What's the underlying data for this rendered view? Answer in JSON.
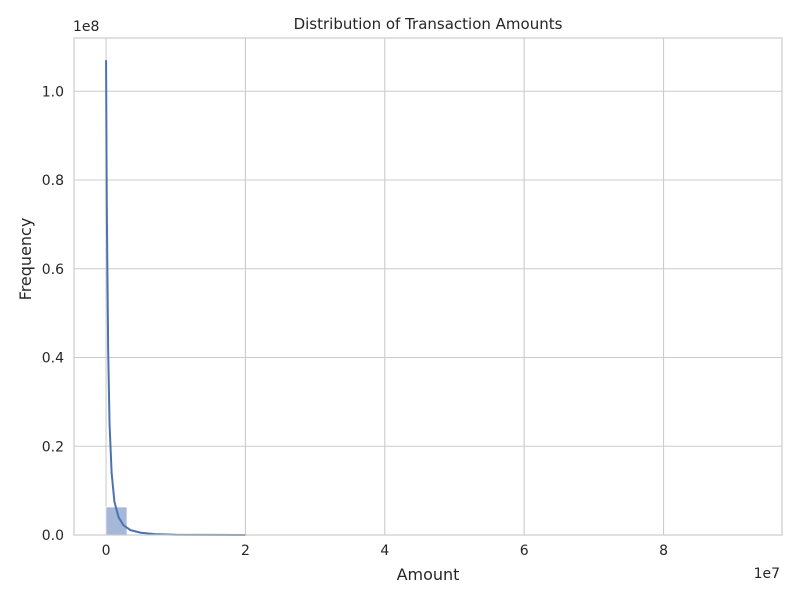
{
  "chart_data": {
    "type": "bar",
    "title": "Distribution of Transaction Amounts",
    "xlabel": "Amount",
    "ylabel": "Frequency",
    "x_offset_label": "1e7",
    "y_offset_label": "1e8",
    "xlim": [
      -0.46,
      9.7
    ],
    "ylim": [
      0,
      1.12
    ],
    "x_ticks": [
      0,
      2,
      4,
      6,
      8
    ],
    "x_tick_labels": [
      "0",
      "2",
      "4",
      "6",
      "8"
    ],
    "y_ticks": [
      0,
      0.2,
      0.4,
      0.6,
      0.8,
      1.0
    ],
    "y_tick_labels": [
      "0.0",
      "0.2",
      "0.4",
      "0.6",
      "0.8",
      "1.0"
    ],
    "grid": true,
    "bin_width": 0.3,
    "histogram": [
      {
        "x_start": 0.0,
        "x_end": 0.3,
        "count": 0.063
      }
    ],
    "kde": {
      "x": [
        0.0,
        0.01,
        0.03,
        0.05,
        0.08,
        0.12,
        0.18,
        0.25,
        0.35,
        0.5,
        0.7,
        1.0,
        2.0
      ],
      "y": [
        1.07,
        0.75,
        0.42,
        0.25,
        0.14,
        0.075,
        0.04,
        0.022,
        0.011,
        0.005,
        0.002,
        0.0005,
        0.0
      ]
    },
    "colors": {
      "bar_fill": "#4c72b0",
      "bar_opacity": 0.5,
      "kde_line": "#4c72b0",
      "grid": "#cccccc",
      "background": "#ffffff"
    }
  }
}
